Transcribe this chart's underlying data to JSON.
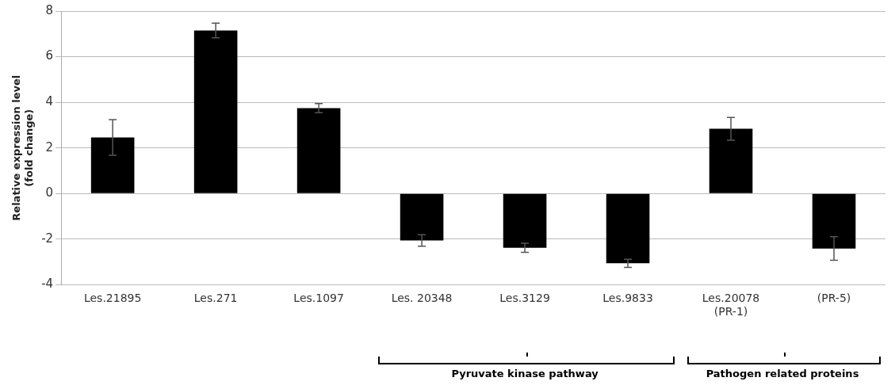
{
  "chart_data": {
    "type": "bar",
    "ylabel": "Relative expression level\n(fold change)",
    "categories": [
      "Les.21895",
      "Les.271",
      "Les.1097",
      "Les. 20348",
      "Les.3129",
      "Les.9833",
      "Les.20078\n(PR-1)",
      "(PR-5)"
    ],
    "values": [
      2.46,
      7.15,
      3.74,
      -2.06,
      -2.38,
      -3.06,
      2.84,
      -2.41
    ],
    "errors": [
      0.78,
      0.32,
      0.2,
      0.25,
      0.2,
      0.18,
      0.5,
      0.52
    ],
    "color": "#000000",
    "ylim": [
      -4,
      8
    ],
    "yticks": [
      -4,
      -2,
      0,
      2,
      4,
      6,
      8
    ],
    "grid": "y",
    "legend": false,
    "annotations": [
      "Pyruvate kinase pathway",
      "Pathogen related proteins"
    ]
  }
}
